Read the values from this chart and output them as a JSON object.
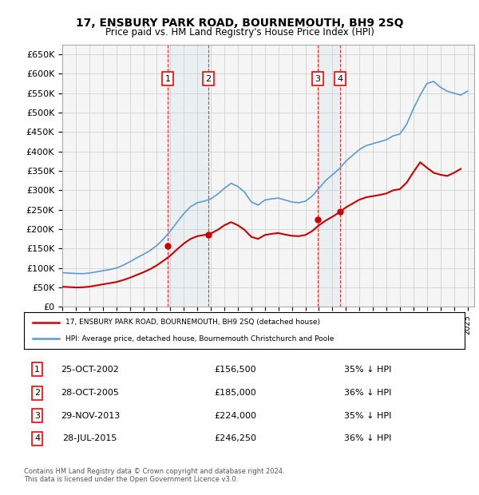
{
  "title": "17, ENSBURY PARK ROAD, BOURNEMOUTH, BH9 2SQ",
  "subtitle": "Price paid vs. HM Land Registry's House Price Index (HPI)",
  "ylabel": "",
  "ylim": [
    0,
    675000
  ],
  "yticks": [
    0,
    50000,
    100000,
    150000,
    200000,
    250000,
    300000,
    350000,
    400000,
    450000,
    500000,
    550000,
    600000,
    650000
  ],
  "xlim_start": 1995.0,
  "xlim_end": 2025.5,
  "legend_line1": "17, ENSBURY PARK ROAD, BOURNEMOUTH, BH9 2SQ (detached house)",
  "legend_line2": "HPI: Average price, detached house, Bournemouth Christchurch and Poole",
  "red_line_color": "#cc0000",
  "blue_line_color": "#5b9bd5",
  "sale_color": "#cc0000",
  "transactions": [
    {
      "label": "1",
      "date_num": 2002.82,
      "price": 156500,
      "pct": "35% ↓ HPI",
      "date_str": "25-OCT-2002"
    },
    {
      "label": "2",
      "date_num": 2005.82,
      "price": 185000,
      "pct": "36% ↓ HPI",
      "date_str": "28-OCT-2005"
    },
    {
      "label": "3",
      "date_num": 2013.91,
      "price": 224000,
      "pct": "35% ↓ HPI",
      "date_str": "29-NOV-2013"
    },
    {
      "label": "4",
      "date_num": 2015.57,
      "price": 246250,
      "pct": "36% ↓ HPI",
      "date_str": "28-JUL-2015"
    }
  ],
  "footer": "Contains HM Land Registry data © Crown copyright and database right 2024.\nThis data is licensed under the Open Government Licence v3.0.",
  "grid_color": "#cccccc",
  "background_color": "#ffffff",
  "plot_bg_color": "#f5f5f5"
}
